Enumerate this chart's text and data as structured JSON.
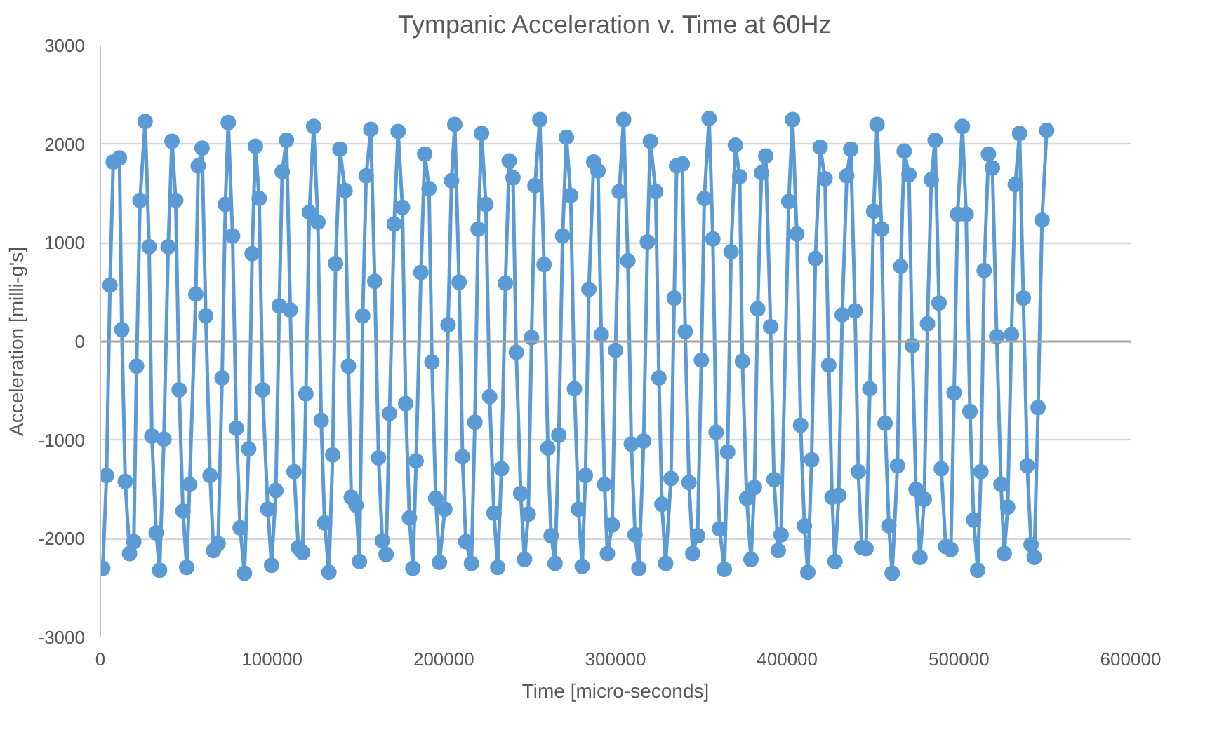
{
  "chart_data": {
    "type": "line",
    "title": "Tympanic Acceleration v. Time at 60Hz",
    "xlabel": "Time [micro-seconds]",
    "ylabel": "Acceleration [milli-g's]",
    "xlim": [
      0,
      600000
    ],
    "xticks": [
      0,
      100000,
      200000,
      300000,
      400000,
      500000,
      600000
    ],
    "ylim": [
      -3000,
      3000
    ],
    "yticks": [
      -3000,
      -2000,
      -1000,
      0,
      1000,
      2000,
      3000
    ],
    "grid": "y",
    "marker": "circle",
    "line_style": "solid",
    "series": [
      {
        "color": "#5b9bd5",
        "x": [
          1400,
          3600,
          5600,
          7500,
          11100,
          12500,
          14500,
          17000,
          19500,
          21100,
          23100,
          26100,
          28400,
          30000,
          32500,
          34500,
          37000,
          39500,
          41700,
          43900,
          45900,
          48100,
          50300,
          52000,
          55600,
          57000,
          59200,
          61400,
          63900,
          65900,
          68600,
          70900,
          72800,
          74500,
          77000,
          79200,
          81400,
          83900,
          86400,
          88400,
          90300,
          92500,
          94500,
          97500,
          99700,
          102200,
          104200,
          105900,
          108400,
          110600,
          112800,
          115300,
          117800,
          119700,
          121700,
          124200,
          126700,
          128600,
          130600,
          133100,
          135300,
          137000,
          139500,
          142500,
          144500,
          146100,
          148900,
          150900,
          152800,
          154800,
          157500,
          159800,
          162000,
          164200,
          166400,
          168400,
          171100,
          173400,
          175900,
          177800,
          180000,
          182000,
          183900,
          186700,
          188900,
          191400,
          193100,
          195300,
          197500,
          200600,
          202500,
          204500,
          206400,
          208900,
          210900,
          212800,
          216100,
          218100,
          220000,
          222000,
          224500,
          226700,
          229200,
          231400,
          233600,
          235900,
          238100,
          240300,
          242200,
          244800,
          247000,
          249200,
          251100,
          253100,
          255900,
          258400,
          260600,
          262500,
          264800,
          267000,
          269200,
          271400,
          273900,
          276100,
          278400,
          280600,
          282500,
          284500,
          287300,
          289800,
          291700,
          293600,
          295300,
          298100,
          300000,
          302200,
          304700,
          307200,
          309200,
          311400,
          313600,
          316400,
          318600,
          320300,
          323400,
          325300,
          327000,
          329200,
          332300,
          334200,
          335600,
          338900,
          340600,
          342800,
          345000,
          347800,
          350000,
          351700,
          354500,
          356700,
          358600,
          360600,
          363400,
          365300,
          367300,
          369800,
          372300,
          373900,
          376400,
          378900,
          380900,
          382800,
          385000,
          387500,
          390300,
          392300,
          394800,
          396400,
          400900,
          403100,
          405600,
          407800,
          410000,
          412000,
          414200,
          416400,
          419200,
          422000,
          424200,
          426100,
          427800,
          430000,
          432000,
          434700,
          437000,
          439500,
          441400,
          443400,
          445900,
          448100,
          450300,
          452300,
          455000,
          457000,
          459200,
          461100,
          464200,
          466100,
          468100,
          470900,
          472800,
          475000,
          477300,
          479800,
          481700,
          483900,
          486100,
          488400,
          489700,
          492300,
          495300,
          497200,
          499200,
          502000,
          504200,
          506400,
          508600,
          510900,
          512800,
          514700,
          517200,
          519500,
          522000,
          524500,
          526400,
          528400,
          530600,
          532800,
          535300,
          537500,
          539800,
          542000,
          543900,
          546100,
          548400,
          551100
        ],
        "values": [
          -2300,
          -1360,
          570,
          1820,
          1860,
          120,
          -1420,
          -2150,
          -2030,
          -250,
          1430,
          2230,
          960,
          -960,
          -1940,
          -2320,
          -990,
          960,
          2030,
          1430,
          -490,
          -1720,
          -2290,
          -1450,
          480,
          1780,
          1960,
          260,
          -1360,
          -2120,
          -2050,
          -370,
          1390,
          2220,
          1070,
          -880,
          -1890,
          -2350,
          -1090,
          890,
          1980,
          1450,
          -490,
          -1700,
          -2270,
          -1510,
          360,
          1720,
          2040,
          320,
          -1320,
          -2090,
          -2140,
          -530,
          1310,
          2180,
          1210,
          -800,
          -1840,
          -2340,
          -1150,
          790,
          1950,
          1530,
          -250,
          -1580,
          -1660,
          -2230,
          260,
          1680,
          2150,
          610,
          -1180,
          -2020,
          -2160,
          -730,
          1190,
          2130,
          1360,
          -630,
          -1790,
          -2300,
          -1210,
          700,
          1900,
          1550,
          -210,
          -1590,
          -2240,
          -1700,
          170,
          1630,
          2200,
          600,
          -1170,
          -2030,
          -2250,
          -820,
          1140,
          2110,
          1390,
          -560,
          -1740,
          -2290,
          -1290,
          590,
          1830,
          1660,
          -110,
          -1540,
          -2210,
          -1750,
          40,
          1580,
          2250,
          780,
          -1080,
          -1970,
          -2250,
          -950,
          1070,
          2070,
          1480,
          -480,
          -1700,
          -2280,
          -1360,
          530,
          1820,
          1730,
          70,
          -1450,
          -2150,
          -1860,
          -90,
          1520,
          2250,
          820,
          -1040,
          -1960,
          -2300,
          -1010,
          1010,
          2030,
          1520,
          -370,
          -1650,
          -2250,
          -1390,
          440,
          1780,
          1800,
          100,
          -1430,
          -2150,
          -1970,
          -190,
          1450,
          2260,
          1040,
          -920,
          -1900,
          -2310,
          -1120,
          910,
          1990,
          1670,
          -200,
          -1590,
          -2210,
          -1480,
          330,
          1710,
          1880,
          150,
          -1400,
          -2120,
          -1960,
          1420,
          2250,
          1090,
          -850,
          -1870,
          -2340,
          -1200,
          840,
          1970,
          1650,
          -240,
          -1580,
          -2230,
          -1560,
          270,
          1680,
          1950,
          310,
          -1320,
          -2090,
          -2100,
          -480,
          1320,
          2200,
          1140,
          -830,
          -1870,
          -2350,
          -1260,
          760,
          1930,
          1690,
          -40,
          -1500,
          -2190,
          -1600,
          180,
          1640,
          2040,
          390,
          -1290,
          -2080,
          -2110,
          -520,
          1290,
          2180,
          1290,
          -710,
          -1810,
          -2320,
          -1320,
          720,
          1900,
          1760,
          50,
          -1450,
          -2150,
          -1680,
          70,
          1590,
          2110,
          440,
          -1260,
          -2060,
          -2190,
          -670,
          1230,
          2140
        ]
      }
    ]
  }
}
